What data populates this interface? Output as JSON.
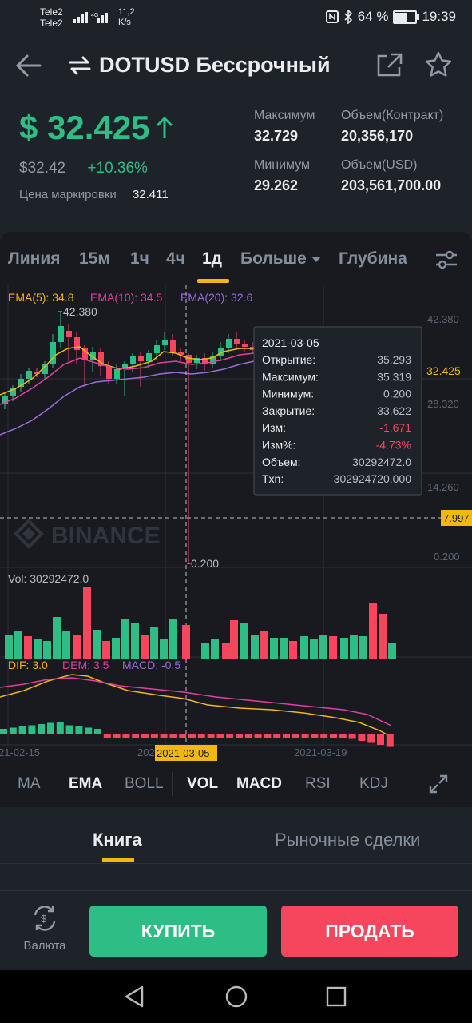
{
  "status": {
    "carrier1": "Tele2",
    "carrier2": "Tele2",
    "net_type": "4G",
    "speed": "11,2",
    "speed_unit": "K/s",
    "battery": "64 %",
    "time": "19:39"
  },
  "header": {
    "title": "DOTUSD Бессрочный"
  },
  "price": {
    "last": "$ 32.425",
    "usd": "$32.42",
    "change": "+10.36%",
    "mark_label": "Цена маркировки",
    "mark_value": "32.411"
  },
  "stats": {
    "high_label": "Максимум",
    "high": "32.729",
    "low_label": "Минимум",
    "low": "29.262",
    "vol_contract_label": "Объем(Контракт)",
    "vol_contract": "20,356,170",
    "vol_usd_label": "Объем(USD)",
    "vol_usd": "203,561,700.00"
  },
  "tabs": [
    "Линия",
    "15м",
    "1ч",
    "4ч",
    "1д",
    "Больше",
    "Глубина"
  ],
  "active_tab": "1д",
  "chart": {
    "ema5": "EMA(5): 34.8",
    "ema10": "EMA(10): 34.5",
    "ema20": "EMA(20): 32.6",
    "y_labels": [
      "42.380",
      "28.320",
      "14.260",
      "0.200"
    ],
    "price_tag": "32.425",
    "dashed_tag": "7.997",
    "high_marker": "42.380",
    "low_marker": "0.200",
    "watermark": "BINANCE",
    "vol_label": "Vol: 30292472.0",
    "dif": "DIF: 3.0",
    "dem": "DEM: 3.5",
    "macd": "MACD: -0.5",
    "x_labels": [
      "21-02-15",
      "202",
      "2021-03-05",
      "2021-03-19"
    ],
    "tooltip": {
      "date": "2021-03-05",
      "rows": [
        {
          "label": "Открытие:",
          "value": "35.293",
          "neg": false
        },
        {
          "label": "Максимум:",
          "value": "35.319",
          "neg": false
        },
        {
          "label": "Минимум:",
          "value": "0.200",
          "neg": false
        },
        {
          "label": "Закрытие:",
          "value": "33.622",
          "neg": false
        },
        {
          "label": "Изм:",
          "value": "-1.671",
          "neg": true
        },
        {
          "label": "Изм%:",
          "value": "-4.73%",
          "neg": true
        },
        {
          "label": "Объем:",
          "value": "30292472.0",
          "neg": false
        },
        {
          "label": "Txn:",
          "value": "302924720.000",
          "neg": false
        }
      ]
    }
  },
  "indicators": [
    "MA",
    "EMA",
    "BOLL",
    "VOL",
    "MACD",
    "RSI",
    "KDJ"
  ],
  "active_indicators": [
    "EMA",
    "VOL",
    "MACD"
  ],
  "book_tabs": {
    "book": "Книга",
    "trades": "Рыночные сделки"
  },
  "actions": {
    "currency": "Валюта",
    "buy": "КУПИТЬ",
    "sell": "ПРОДАТЬ"
  },
  "colors": {
    "up": "#2ebd85",
    "down": "#f6465d",
    "accent": "#f0b90b"
  }
}
